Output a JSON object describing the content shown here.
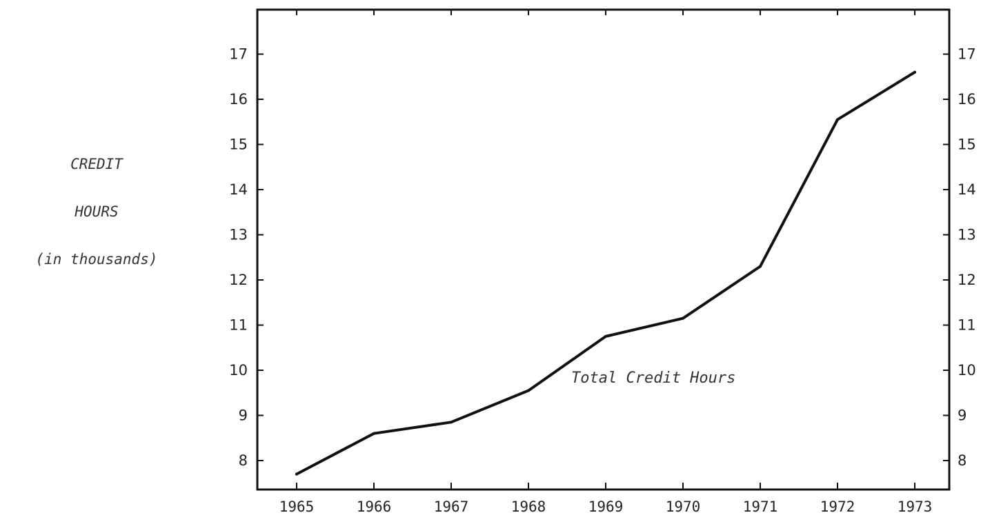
{
  "chart_data": {
    "type": "line",
    "ylabel_lines": [
      "CREDIT",
      "HOURS",
      "(in thousands)"
    ],
    "xlabel": "",
    "x": [
      1965,
      1966,
      1967,
      1968,
      1969,
      1970,
      1971,
      1972,
      1973
    ],
    "y_ticks": [
      8,
      9,
      10,
      11,
      12,
      13,
      14,
      15,
      16,
      17
    ],
    "ylim": [
      7,
      18
    ],
    "series": [
      {
        "name": "Total Credit Hours",
        "values": [
          7.7,
          8.6,
          8.85,
          9.55,
          10.75,
          11.15,
          12.3,
          15.55,
          16.6
        ]
      }
    ],
    "grid": false,
    "line_color": "#111111"
  }
}
